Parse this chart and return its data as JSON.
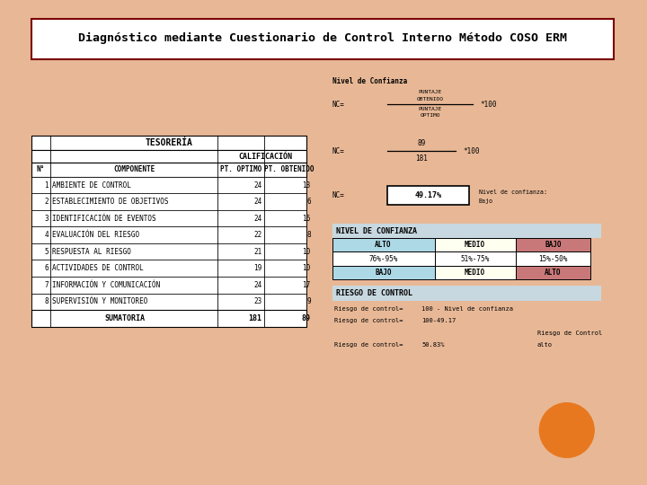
{
  "title": "Diagnóstico mediante Cuestionario de Control Interno Método COSO ERM",
  "bg_outer": "#e8b896",
  "bg_inner": "#ffffff",
  "table_title": "TESORERÍA",
  "sub_headers": [
    "N°",
    "COMPONENTE",
    "PT. OPTIMO",
    "PT. OBTENIDO"
  ],
  "rows": [
    [
      "1",
      "AMBIENTE DE CONTROL",
      24,
      13
    ],
    [
      "2",
      "ESTABLECIMIENTO DE OBJETIVOS",
      24,
      6
    ],
    [
      "3",
      "IDENTIFICACIÓN DE EVENTOS",
      24,
      16
    ],
    [
      "4",
      "EVALUACIÓN DEL RIESGO",
      22,
      8
    ],
    [
      "5",
      "RESPUESTA AL RIESGO",
      21,
      10
    ],
    [
      "6",
      "ACTIVIDADES DE CONTROL",
      19,
      10
    ],
    [
      "7",
      "INFORMACIÓN Y COMUNICACIÓN",
      24,
      17
    ],
    [
      "8",
      "SUPERVISIÓN Y MONITOREO",
      23,
      9
    ]
  ],
  "sumatoria_label": "SUMATORIA",
  "sumatoria_optimo": 181,
  "sumatoria_obtenido": 89,
  "nivel_confianza_label": "Nivel de Confianza",
  "nc_result": "49.17%",
  "nivel_confianza_bajo": "Nivel de confianza:\nBajo",
  "nivel_confianza_section": "NIVEL DE CONFIANZA",
  "nivel_table": [
    [
      "ALTO",
      "MEDIO",
      "BAJO"
    ],
    [
      "76%-95%",
      "51%-75%",
      "15%-50%"
    ],
    [
      "BAJO",
      "MEDIO",
      "ALTO"
    ]
  ],
  "nivel_colors_row0": [
    "#add8e6",
    "#fffff0",
    "#c87878"
  ],
  "nivel_colors_row2": [
    "#add8e6",
    "#fffff0",
    "#c87878"
  ],
  "riesgo_section": "RIESGO DE CONTROL",
  "riesgo_lines": [
    [
      "Riesgo de control=",
      "100 - Nivel de confianza"
    ],
    [
      "Riesgo de control=",
      "100-49.17"
    ],
    [
      "",
      ""
    ],
    [
      "Riesgo de control=",
      "50.83%"
    ]
  ],
  "riesgo_control_alto": "Riesgo de Control\nalto",
  "circle_color": "#e87820",
  "title_border_color": "#7a0000"
}
